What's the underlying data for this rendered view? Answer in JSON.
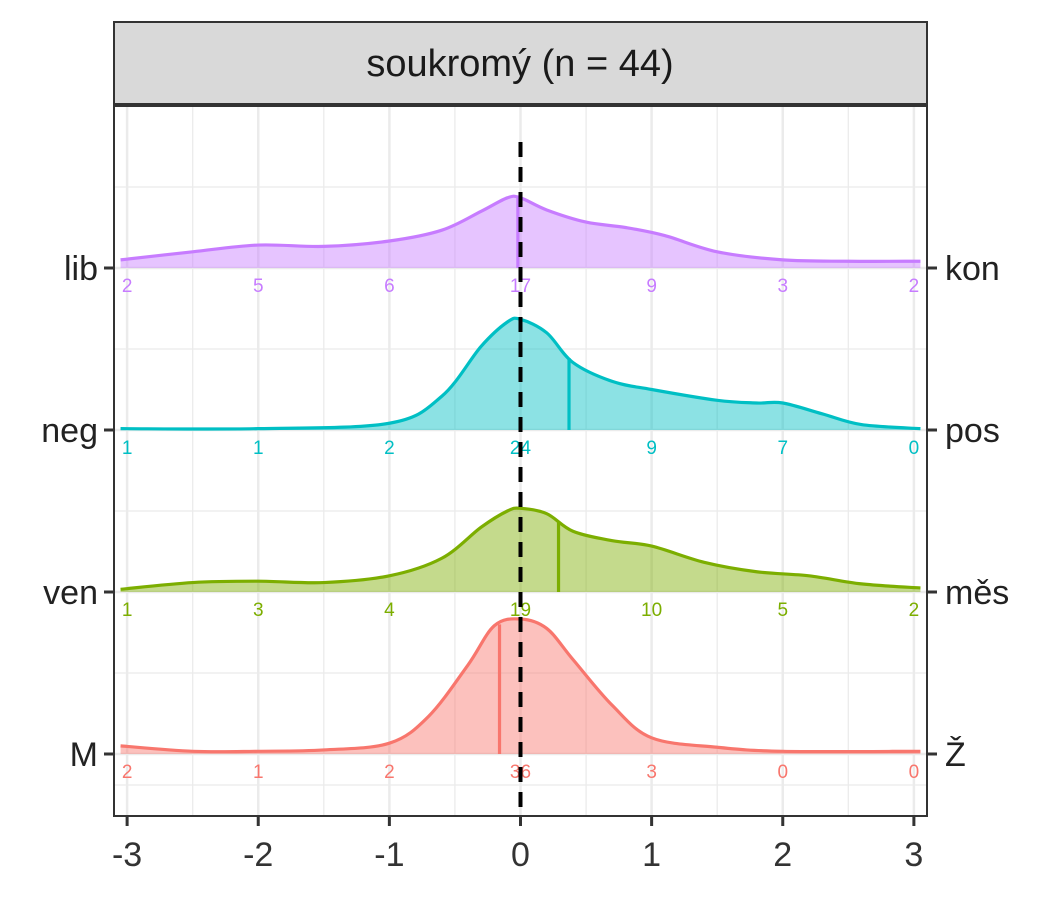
{
  "chart_data": {
    "type": "area",
    "title": "soukromý (n = 44)",
    "xlabel": "",
    "ylabel": "",
    "xlim": [
      -3.1,
      3.1
    ],
    "x_ticks": [
      "-3",
      "-2",
      "-1",
      "0",
      "1",
      "2",
      "3"
    ],
    "reference_line_x": 0,
    "grid": true,
    "legend": "none",
    "series": [
      {
        "left_label": "lib",
        "right_label": "kon",
        "color": "#c77cff",
        "mean": -0.02,
        "counts": [
          2,
          5,
          6,
          17,
          9,
          3,
          2
        ],
        "density": [
          [
            -3.05,
            0.06
          ],
          [
            -2.5,
            0.12
          ],
          [
            -2.0,
            0.17
          ],
          [
            -1.5,
            0.16
          ],
          [
            -1.0,
            0.2
          ],
          [
            -0.6,
            0.28
          ],
          [
            -0.3,
            0.42
          ],
          [
            -0.1,
            0.52
          ],
          [
            0.0,
            0.52
          ],
          [
            0.2,
            0.43
          ],
          [
            0.5,
            0.34
          ],
          [
            0.8,
            0.3
          ],
          [
            1.1,
            0.24
          ],
          [
            1.5,
            0.12
          ],
          [
            2.0,
            0.06
          ],
          [
            2.5,
            0.05
          ],
          [
            3.05,
            0.05
          ]
        ]
      },
      {
        "left_label": "neg",
        "right_label": "pos",
        "color": "#00bfc4",
        "mean": 0.37,
        "counts": [
          1,
          1,
          2,
          24,
          9,
          7,
          0
        ],
        "density": [
          [
            -3.05,
            0.01
          ],
          [
            -2.0,
            0.01
          ],
          [
            -1.0,
            0.05
          ],
          [
            -0.6,
            0.25
          ],
          [
            -0.3,
            0.62
          ],
          [
            -0.1,
            0.8
          ],
          [
            0.0,
            0.82
          ],
          [
            0.2,
            0.72
          ],
          [
            0.4,
            0.5
          ],
          [
            0.7,
            0.36
          ],
          [
            1.0,
            0.3
          ],
          [
            1.5,
            0.22
          ],
          [
            1.8,
            0.2
          ],
          [
            2.0,
            0.2
          ],
          [
            2.3,
            0.12
          ],
          [
            2.6,
            0.04
          ],
          [
            3.05,
            0.01
          ]
        ]
      },
      {
        "left_label": "ven",
        "right_label": "měs",
        "color": "#7cae00",
        "mean": 0.29,
        "counts": [
          1,
          3,
          4,
          19,
          10,
          5,
          2
        ],
        "density": [
          [
            -3.05,
            0.02
          ],
          [
            -2.5,
            0.07
          ],
          [
            -2.0,
            0.08
          ],
          [
            -1.5,
            0.07
          ],
          [
            -1.0,
            0.12
          ],
          [
            -0.6,
            0.25
          ],
          [
            -0.3,
            0.48
          ],
          [
            -0.1,
            0.6
          ],
          [
            0.0,
            0.62
          ],
          [
            0.2,
            0.58
          ],
          [
            0.4,
            0.45
          ],
          [
            0.7,
            0.38
          ],
          [
            1.0,
            0.34
          ],
          [
            1.4,
            0.22
          ],
          [
            1.8,
            0.15
          ],
          [
            2.2,
            0.12
          ],
          [
            2.6,
            0.06
          ],
          [
            3.05,
            0.03
          ]
        ]
      },
      {
        "left_label": "M",
        "right_label": "Ž",
        "color": "#f8766d",
        "mean": -0.16,
        "counts": [
          2,
          1,
          2,
          36,
          3,
          0,
          0
        ],
        "density": [
          [
            -3.05,
            0.06
          ],
          [
            -2.5,
            0.02
          ],
          [
            -2.0,
            0.02
          ],
          [
            -1.5,
            0.03
          ],
          [
            -1.0,
            0.08
          ],
          [
            -0.7,
            0.28
          ],
          [
            -0.4,
            0.66
          ],
          [
            -0.2,
            0.95
          ],
          [
            0.0,
            1.0
          ],
          [
            0.2,
            0.93
          ],
          [
            0.4,
            0.7
          ],
          [
            0.7,
            0.36
          ],
          [
            1.0,
            0.12
          ],
          [
            1.5,
            0.05
          ],
          [
            2.0,
            0.02
          ],
          [
            3.05,
            0.02
          ]
        ]
      }
    ]
  }
}
